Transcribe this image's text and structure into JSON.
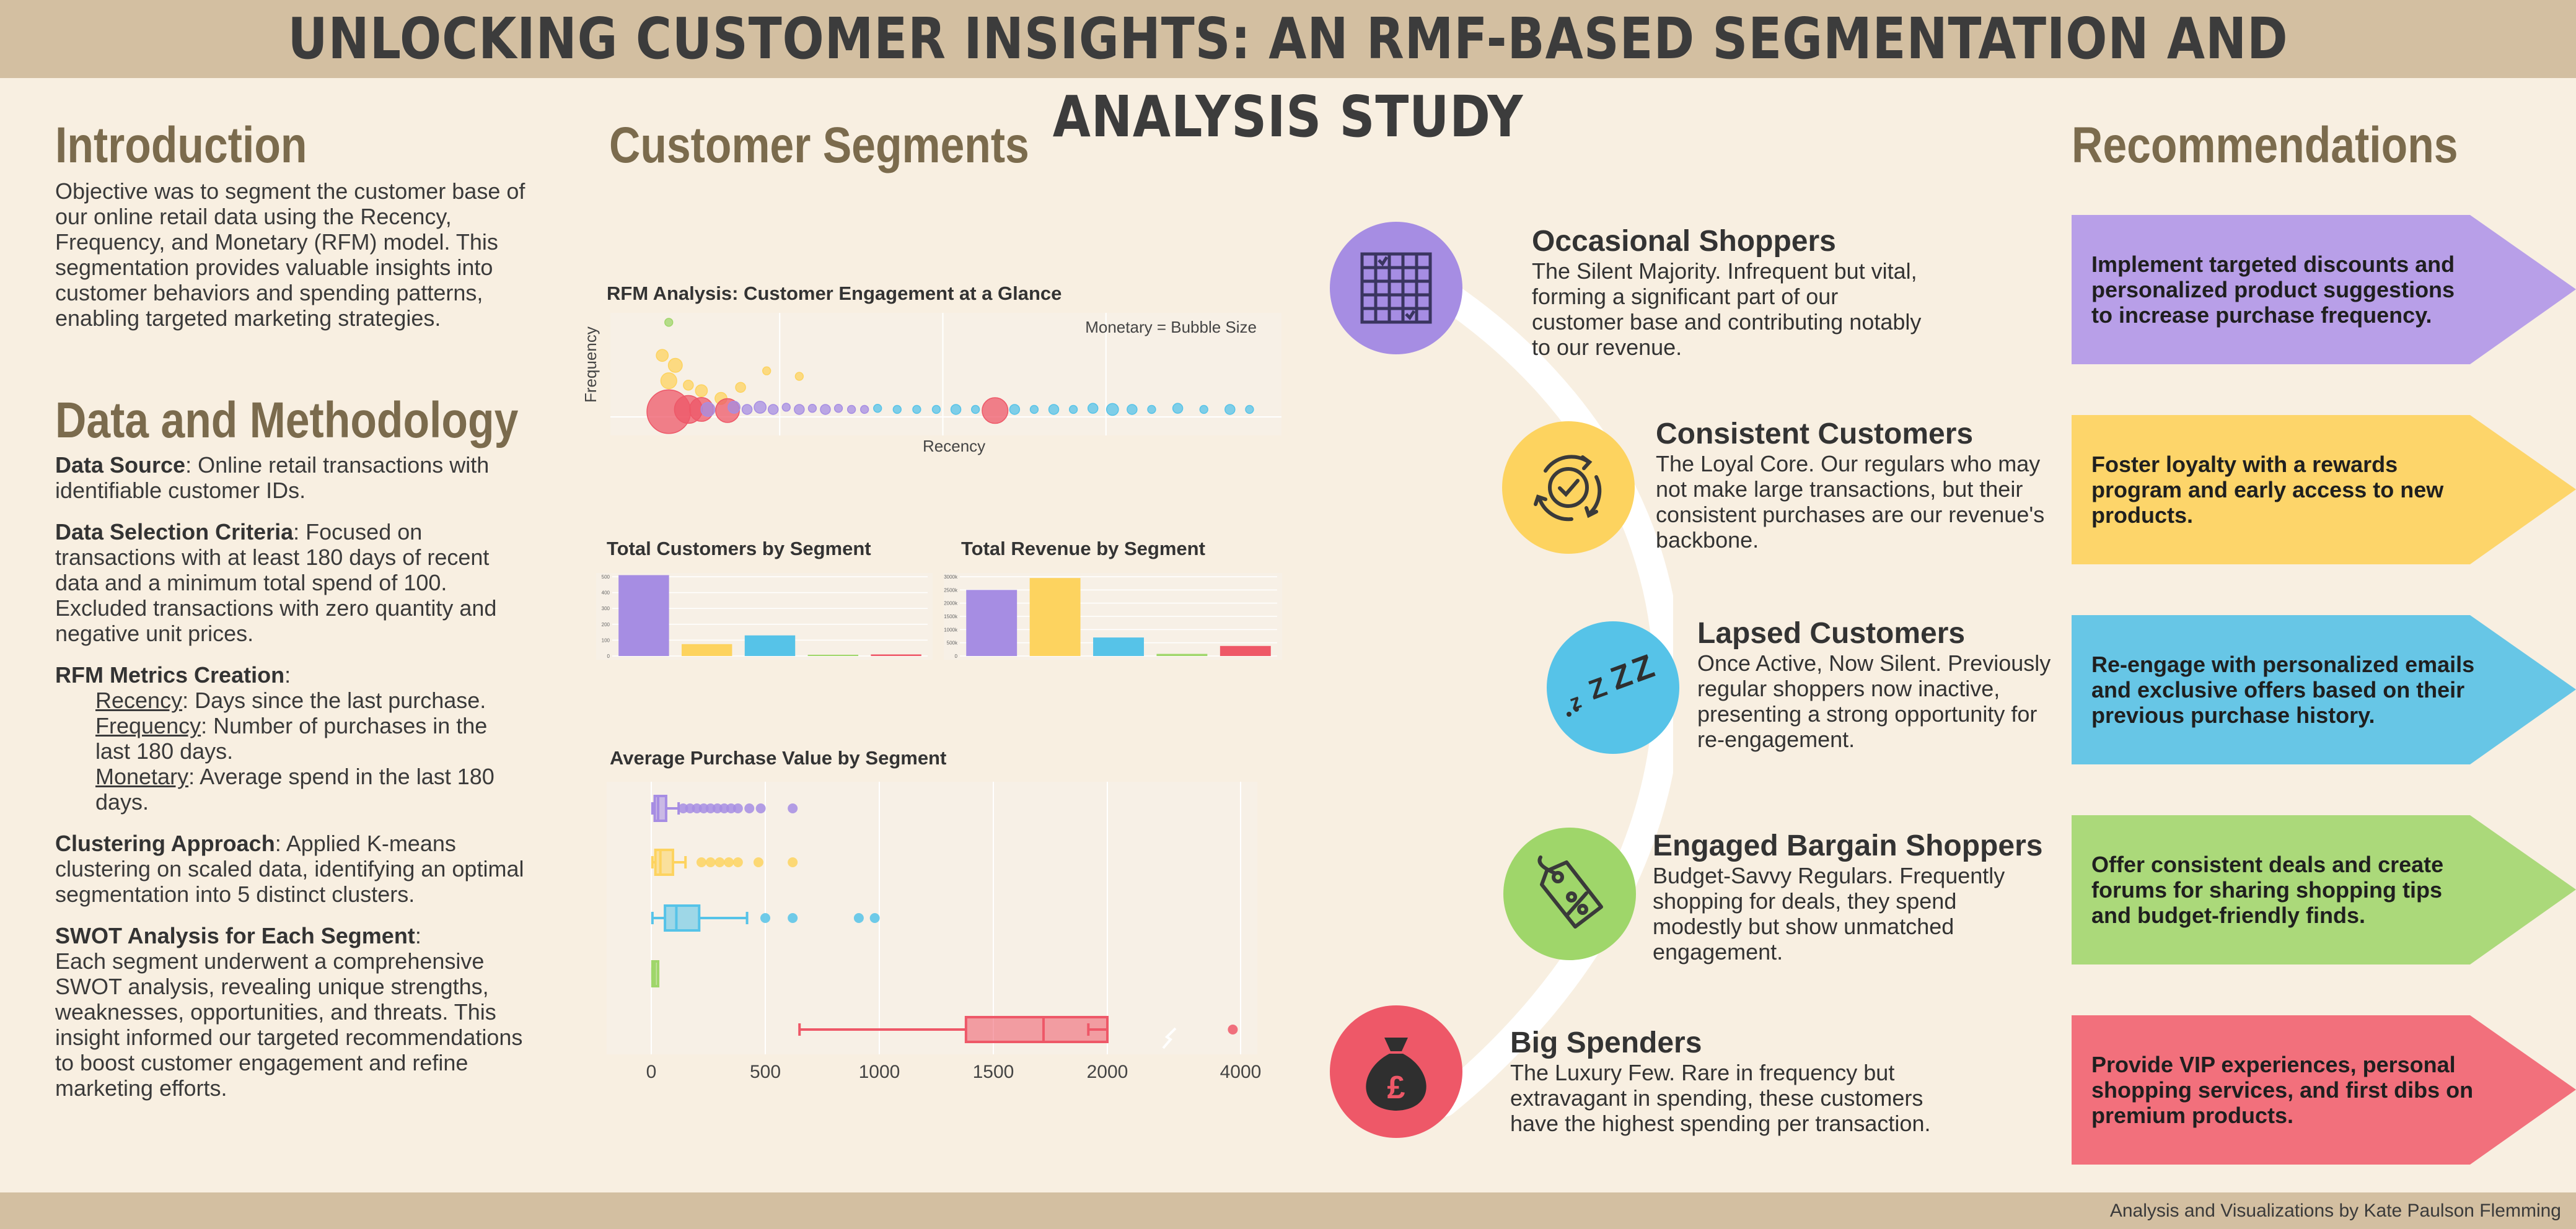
{
  "title": "UNLOCKING CUSTOMER INSIGHTS: AN RMF-BASED SEGMENTATION AND ANALYSIS STUDY",
  "footer": "Analysis and Visualizations by Kate Paulson Flemming",
  "intro": {
    "heading": "Introduction",
    "text": "Objective was to segment the customer base of our online retail data using the Recency, Frequency, and Monetary (RFM) model. This segmentation provides valuable insights into customer behaviors and spending patterns, enabling targeted marketing strategies."
  },
  "method": {
    "heading": "Data and Methodology",
    "source_label": "Data Source",
    "source_text": ": Online retail transactions with identifiable customer IDs.",
    "selection_label": "Data Selection Criteria",
    "selection_text": ": Focused on transactions with at least 180 days of recent data and a minimum total spend of 100. Excluded transactions with zero quantity and negative unit prices.",
    "rfm_label": "RFM Metrics Creation",
    "rfm_colon": ":",
    "recency_label": "Recency",
    "recency_text": ": Days since the last purchase.",
    "frequency_label": "Frequency",
    "frequency_text": ": Number of purchases in the last 180 days.",
    "monetary_label": "Monetary",
    "monetary_text": ": Average spend in the last 180 days.",
    "clustering_label": "Clustering Approach",
    "clustering_text": ": Applied K-means clustering on scaled data, identifying an optimal segmentation into 5 distinct clusters.",
    "swot_label": "SWOT Analysis for Each Segment",
    "swot_colon": ":",
    "swot_text": "Each segment underwent a comprehensive SWOT analysis, revealing unique strengths, weaknesses, opportunities, and threats. This insight informed our targeted recommendations to boost customer engagement and refine marketing efforts."
  },
  "segments_heading": "Customer Segments",
  "recommendations_heading": "Recommendations",
  "colors": {
    "occasional": "#a68de3",
    "consistent": "#fdd35f",
    "lapsed": "#56c3e8",
    "bargain": "#9fd66a",
    "big": "#ee5868"
  },
  "chart_data": [
    {
      "type": "scatter",
      "title": "RFM Analysis: Customer Engagement at a Glance",
      "xlabel": "Recency",
      "ylabel": "Frequency",
      "annotation": "Monetary = Bubble Size",
      "points": [
        {
          "x": 0.08,
          "y": 0.97,
          "s": 4,
          "c": "bargain"
        },
        {
          "x": 0.07,
          "y": 0.67,
          "s": 6,
          "c": "consistent"
        },
        {
          "x": 0.09,
          "y": 0.58,
          "s": 7,
          "c": "consistent"
        },
        {
          "x": 0.08,
          "y": 0.44,
          "s": 8,
          "c": "consistent"
        },
        {
          "x": 0.11,
          "y": 0.4,
          "s": 5,
          "c": "consistent"
        },
        {
          "x": 0.13,
          "y": 0.35,
          "s": 6,
          "c": "consistent"
        },
        {
          "x": 0.19,
          "y": 0.38,
          "s": 5,
          "c": "consistent"
        },
        {
          "x": 0.23,
          "y": 0.53,
          "s": 4,
          "c": "consistent"
        },
        {
          "x": 0.28,
          "y": 0.48,
          "s": 4,
          "c": "consistent"
        },
        {
          "x": 0.16,
          "y": 0.28,
          "s": 6,
          "c": "consistent"
        },
        {
          "x": 0.08,
          "y": 0.16,
          "s": 22,
          "c": "big"
        },
        {
          "x": 0.11,
          "y": 0.18,
          "s": 14,
          "c": "big"
        },
        {
          "x": 0.13,
          "y": 0.18,
          "s": 12,
          "c": "big"
        },
        {
          "x": 0.17,
          "y": 0.17,
          "s": 12,
          "c": "big"
        },
        {
          "x": 0.58,
          "y": 0.17,
          "s": 13,
          "c": "big"
        },
        {
          "x": 0.14,
          "y": 0.18,
          "s": 7,
          "c": "occasional"
        },
        {
          "x": 0.18,
          "y": 0.2,
          "s": 6,
          "c": "occasional"
        },
        {
          "x": 0.2,
          "y": 0.18,
          "s": 5,
          "c": "occasional"
        },
        {
          "x": 0.22,
          "y": 0.2,
          "s": 6,
          "c": "occasional"
        },
        {
          "x": 0.24,
          "y": 0.18,
          "s": 5,
          "c": "occasional"
        },
        {
          "x": 0.26,
          "y": 0.2,
          "s": 4,
          "c": "occasional"
        },
        {
          "x": 0.28,
          "y": 0.18,
          "s": 5,
          "c": "occasional"
        },
        {
          "x": 0.3,
          "y": 0.19,
          "s": 4,
          "c": "occasional"
        },
        {
          "x": 0.32,
          "y": 0.18,
          "s": 5,
          "c": "occasional"
        },
        {
          "x": 0.34,
          "y": 0.19,
          "s": 4,
          "c": "occasional"
        },
        {
          "x": 0.36,
          "y": 0.18,
          "s": 4,
          "c": "occasional"
        },
        {
          "x": 0.38,
          "y": 0.18,
          "s": 4,
          "c": "occasional"
        },
        {
          "x": 0.4,
          "y": 0.19,
          "s": 4,
          "c": "lapsed"
        },
        {
          "x": 0.43,
          "y": 0.18,
          "s": 4,
          "c": "lapsed"
        },
        {
          "x": 0.46,
          "y": 0.18,
          "s": 4,
          "c": "lapsed"
        },
        {
          "x": 0.49,
          "y": 0.18,
          "s": 4,
          "c": "lapsed"
        },
        {
          "x": 0.52,
          "y": 0.18,
          "s": 5,
          "c": "lapsed"
        },
        {
          "x": 0.55,
          "y": 0.18,
          "s": 4,
          "c": "lapsed"
        },
        {
          "x": 0.61,
          "y": 0.18,
          "s": 5,
          "c": "lapsed"
        },
        {
          "x": 0.64,
          "y": 0.18,
          "s": 4,
          "c": "lapsed"
        },
        {
          "x": 0.67,
          "y": 0.18,
          "s": 5,
          "c": "lapsed"
        },
        {
          "x": 0.7,
          "y": 0.18,
          "s": 4,
          "c": "lapsed"
        },
        {
          "x": 0.73,
          "y": 0.19,
          "s": 5,
          "c": "lapsed"
        },
        {
          "x": 0.76,
          "y": 0.18,
          "s": 6,
          "c": "lapsed"
        },
        {
          "x": 0.79,
          "y": 0.18,
          "s": 5,
          "c": "lapsed"
        },
        {
          "x": 0.82,
          "y": 0.18,
          "s": 4,
          "c": "lapsed"
        },
        {
          "x": 0.86,
          "y": 0.19,
          "s": 5,
          "c": "lapsed"
        },
        {
          "x": 0.9,
          "y": 0.18,
          "s": 4,
          "c": "lapsed"
        },
        {
          "x": 0.94,
          "y": 0.18,
          "s": 5,
          "c": "lapsed"
        },
        {
          "x": 0.97,
          "y": 0.18,
          "s": 4,
          "c": "lapsed"
        }
      ]
    },
    {
      "type": "bar",
      "title": "Total Customers by Segment",
      "ytick_labels": [
        "500",
        "400",
        "300",
        "200",
        "100",
        "0"
      ],
      "ylim": [
        0,
        500
      ],
      "values": [
        510,
        75,
        130,
        8,
        10
      ],
      "colors": [
        "occasional",
        "consistent",
        "lapsed",
        "bargain",
        "big"
      ]
    },
    {
      "type": "bar",
      "title": "Total Revenue by Segment",
      "ytick_labels": [
        "3000k",
        "2500k",
        "2000k",
        "1500k",
        "1000k",
        "500k",
        "0"
      ],
      "ylim": [
        0,
        3000
      ],
      "values": [
        2500,
        2950,
        700,
        80,
        380
      ],
      "colors": [
        "occasional",
        "consistent",
        "lapsed",
        "bargain",
        "big"
      ]
    },
    {
      "type": "box",
      "title": "Average Purchase Value by Segment",
      "xtick_labels": [
        "0",
        "500",
        "1000",
        "1500",
        "2000",
        "4000"
      ],
      "boxes": [
        {
          "c": "occasional",
          "min": 5,
          "q1": 15,
          "med": 30,
          "q3": 65,
          "max": 120,
          "outliers": [
            140,
            170,
            200,
            230,
            260,
            290,
            320,
            350,
            380,
            430,
            480,
            620
          ]
        },
        {
          "c": "consistent",
          "min": 5,
          "q1": 18,
          "med": 40,
          "q3": 95,
          "max": 150,
          "outliers": [
            220,
            260,
            300,
            340,
            380,
            470,
            620
          ]
        },
        {
          "c": "lapsed",
          "min": 5,
          "q1": 60,
          "med": 110,
          "q3": 210,
          "max": 420,
          "outliers": [
            500,
            620,
            910,
            980
          ]
        },
        {
          "c": "bargain",
          "min": 5,
          "q1": 5,
          "med": 15,
          "q3": 30,
          "max": 30,
          "outliers": []
        },
        {
          "c": "big",
          "min": 650,
          "q1": 1380,
          "med": 1720,
          "q3": 2000,
          "max": 2050,
          "outliers": [
            3900
          ]
        }
      ]
    }
  ],
  "segments": [
    {
      "key": "occasional",
      "title": "Occasional Shoppers",
      "desc": "The Silent Majority. Infrequent but vital, forming a significant part of our customer base and contributing notably to our revenue.",
      "icon": "calendar-grid-icon"
    },
    {
      "key": "consistent",
      "title": "Consistent Customers",
      "desc": "The Loyal Core. Our regulars who may not make large transactions, but their consistent purchases are our revenue's backbone.",
      "icon": "cycle-check-icon"
    },
    {
      "key": "lapsed",
      "title": "Lapsed Customers",
      "desc": "Once Active, Now Silent. Previously regular shoppers now inactive, presenting a strong opportunity for re-engagement.",
      "icon": "sleep-zzz-icon"
    },
    {
      "key": "bargain",
      "title": "Engaged Bargain Shoppers",
      "desc": "Budget-Savvy Regulars. Frequently shopping for deals, they spend modestly but show unmatched engagement.",
      "icon": "discount-tag-icon"
    },
    {
      "key": "big",
      "title": "Big Spenders",
      "desc": "The Luxury Few. Rare in frequency but extravagant in spending, these customers have the highest spending per transaction.",
      "icon": "money-bag-icon"
    }
  ],
  "recommendations": [
    {
      "key": "occasional",
      "text": "Implement targeted discounts and personalized product suggestions to increase purchase frequency."
    },
    {
      "key": "consistent",
      "text": "Foster loyalty with a rewards program and early access to new products."
    },
    {
      "key": "lapsed",
      "text": "Re-engage with personalized emails and exclusive offers based on their previous purchase history."
    },
    {
      "key": "bargain",
      "text": "Offer consistent deals and create forums for sharing shopping tips and budget-friendly finds."
    },
    {
      "key": "big",
      "text": "Provide VIP experiences, personal shopping services, and first dibs on premium products."
    }
  ]
}
